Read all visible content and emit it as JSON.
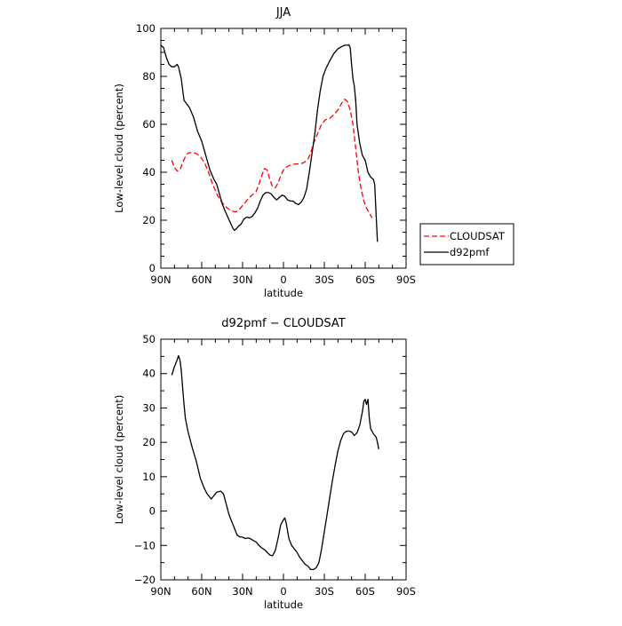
{
  "chart_data": [
    {
      "type": "line",
      "title": "JJA",
      "xlabel": "latitude",
      "ylabel": "Low-level cloud (percent)",
      "xlim": [
        90,
        -90
      ],
      "ylim": [
        0,
        100
      ],
      "xticks": [
        90,
        60,
        30,
        0,
        -30,
        -60,
        -90
      ],
      "xticklabels": [
        "90N",
        "60N",
        "30N",
        "0",
        "30S",
        "60S",
        "90S"
      ],
      "yticks": [
        0,
        20,
        40,
        60,
        80,
        100
      ],
      "yticklabels": [
        "0",
        "20",
        "40",
        "60",
        "80",
        "100"
      ],
      "legend": {
        "placement": "right",
        "entries": [
          "CLOUDSAT",
          "d92pmf"
        ]
      },
      "series": [
        {
          "name": "CLOUDSAT",
          "color": "#ff0000",
          "dash": true,
          "points": [
            [
              82,
              45
            ],
            [
              80,
              42
            ],
            [
              78,
              40.5
            ],
            [
              76,
              41
            ],
            [
              74,
              44
            ],
            [
              72,
              46.5
            ],
            [
              70,
              48
            ],
            [
              67,
              48.3
            ],
            [
              64,
              47.8
            ],
            [
              61,
              46.5
            ],
            [
              58,
              44
            ],
            [
              55,
              40
            ],
            [
              52,
              35
            ],
            [
              49,
              31
            ],
            [
              46,
              28
            ],
            [
              43,
              26
            ],
            [
              40,
              24.5
            ],
            [
              37,
              23.7
            ],
            [
              35,
              23.5
            ],
            [
              33,
              24.2
            ],
            [
              31,
              25.5
            ],
            [
              28,
              27.5
            ],
            [
              25,
              29.5
            ],
            [
              22,
              31
            ],
            [
              20,
              32
            ],
            [
              18,
              35
            ],
            [
              16,
              38.5
            ],
            [
              14,
              41.5
            ],
            [
              12,
              41
            ],
            [
              10,
              37
            ],
            [
              8,
              34
            ],
            [
              6,
              33.5
            ],
            [
              4,
              35.5
            ],
            [
              2,
              38.5
            ],
            [
              0,
              41
            ],
            [
              -3,
              42.5
            ],
            [
              -6,
              43.2
            ],
            [
              -9,
              43.5
            ],
            [
              -12,
              43.5
            ],
            [
              -15,
              44
            ],
            [
              -18,
              45.5
            ],
            [
              -20,
              48
            ],
            [
              -22,
              52
            ],
            [
              -25,
              56
            ],
            [
              -28,
              60
            ],
            [
              -31,
              62
            ],
            [
              -34,
              62.5
            ],
            [
              -37,
              64
            ],
            [
              -40,
              66
            ],
            [
              -43,
              69
            ],
            [
              -45,
              70.5
            ],
            [
              -47,
              69.5
            ],
            [
              -49,
              66
            ],
            [
              -51,
              60
            ],
            [
              -53,
              50
            ],
            [
              -55,
              40
            ],
            [
              -57,
              33
            ],
            [
              -59,
              28
            ],
            [
              -61,
              25
            ],
            [
              -63,
              23
            ],
            [
              -65,
              21
            ]
          ]
        },
        {
          "name": "d92pmf",
          "color": "#000000",
          "dash": false,
          "points": [
            [
              90,
              93
            ],
            [
              88,
              92
            ],
            [
              86,
              88
            ],
            [
              84,
              85
            ],
            [
              82,
              84
            ],
            [
              80,
              84
            ],
            [
              78,
              85
            ],
            [
              77,
              84
            ],
            [
              75,
              79
            ],
            [
              73,
              70
            ],
            [
              71,
              68.5
            ],
            [
              69,
              67
            ],
            [
              66,
              63
            ],
            [
              63,
              57
            ],
            [
              60,
              53
            ],
            [
              57,
              47
            ],
            [
              54,
              41
            ],
            [
              51,
              37
            ],
            [
              49,
              35
            ],
            [
              47,
              31
            ],
            [
              45,
              27
            ],
            [
              43,
              24
            ],
            [
              41,
              21.5
            ],
            [
              39,
              19
            ],
            [
              37,
              16.5
            ],
            [
              36,
              15.8
            ],
            [
              35,
              16.2
            ],
            [
              33,
              17.5
            ],
            [
              31,
              18.5
            ],
            [
              29,
              20.5
            ],
            [
              27,
              21.3
            ],
            [
              25,
              21
            ],
            [
              23,
              21.5
            ],
            [
              21,
              23
            ],
            [
              19,
              25
            ],
            [
              17,
              28
            ],
            [
              15,
              30.5
            ],
            [
              13,
              31.5
            ],
            [
              11,
              31.5
            ],
            [
              9,
              31
            ],
            [
              7,
              29.5
            ],
            [
              5,
              28.5
            ],
            [
              3,
              29.5
            ],
            [
              1,
              30.5
            ],
            [
              -1,
              30
            ],
            [
              -3,
              28.5
            ],
            [
              -5,
              28
            ],
            [
              -7,
              28
            ],
            [
              -9,
              27
            ],
            [
              -11,
              26.5
            ],
            [
              -13,
              27.5
            ],
            [
              -15,
              29.5
            ],
            [
              -17,
              33
            ],
            [
              -19,
              40
            ],
            [
              -21,
              48
            ],
            [
              -23,
              56
            ],
            [
              -25,
              66
            ],
            [
              -27,
              74
            ],
            [
              -29,
              80
            ],
            [
              -31,
              83
            ],
            [
              -34,
              86.5
            ],
            [
              -37,
              89.5
            ],
            [
              -40,
              91.5
            ],
            [
              -43,
              92.5
            ],
            [
              -45,
              93
            ],
            [
              -47,
              93
            ],
            [
              -48,
              93.2
            ],
            [
              -49,
              92
            ],
            [
              -50,
              85
            ],
            [
              -51,
              79
            ],
            [
              -52,
              76
            ],
            [
              -53,
              70
            ],
            [
              -54,
              60
            ],
            [
              -56,
              52
            ],
            [
              -58,
              47
            ],
            [
              -60,
              45
            ],
            [
              -62,
              40
            ],
            [
              -64,
              38
            ],
            [
              -66,
              37
            ],
            [
              -67,
              35
            ],
            [
              -68,
              22
            ],
            [
              -69,
              11
            ]
          ]
        }
      ]
    },
    {
      "type": "line",
      "title": "d92pmf − CLOUDSAT",
      "xlabel": "latitude",
      "ylabel": "Low-level cloud (percent)",
      "xlim": [
        90,
        -90
      ],
      "ylim": [
        -20,
        50
      ],
      "xticks": [
        90,
        60,
        30,
        0,
        -30,
        -60,
        -90
      ],
      "xticklabels": [
        "90N",
        "60N",
        "30N",
        "0",
        "30S",
        "60S",
        "90S"
      ],
      "yticks": [
        -20,
        -10,
        0,
        10,
        20,
        30,
        40,
        50
      ],
      "yticklabels": [
        "−20",
        "−10",
        "0",
        "10",
        "20",
        "30",
        "40",
        "50"
      ],
      "series": [
        {
          "color": "#000000",
          "dash": false,
          "points": [
            [
              82,
              39.5
            ],
            [
              80,
              42
            ],
            [
              78,
              44
            ],
            [
              77,
              45.2
            ],
            [
              76,
              44
            ],
            [
              75,
              41
            ],
            [
              74,
              36
            ],
            [
              73,
              31
            ],
            [
              72,
              27
            ],
            [
              70,
              23
            ],
            [
              67,
              18.5
            ],
            [
              64,
              14.5
            ],
            [
              61,
              9.5
            ],
            [
              58,
              6.5
            ],
            [
              56,
              5
            ],
            [
              54,
              4
            ],
            [
              53,
              3.5
            ],
            [
              51,
              4.5
            ],
            [
              49,
              5.5
            ],
            [
              46,
              5.8
            ],
            [
              44,
              5
            ],
            [
              42,
              2
            ],
            [
              40,
              -1
            ],
            [
              38,
              -3
            ],
            [
              36,
              -5
            ],
            [
              34,
              -7
            ],
            [
              32,
              -7.5
            ],
            [
              30,
              -7.6
            ],
            [
              28,
              -8
            ],
            [
              26,
              -7.8
            ],
            [
              24,
              -8.1
            ],
            [
              22,
              -8.6
            ],
            [
              20,
              -9
            ],
            [
              18,
              -10
            ],
            [
              16,
              -10.7
            ],
            [
              14,
              -11.2
            ],
            [
              12,
              -12
            ],
            [
              10,
              -12.8
            ],
            [
              8,
              -13
            ],
            [
              6,
              -11.5
            ],
            [
              4,
              -8
            ],
            [
              2,
              -4
            ],
            [
              0,
              -2.5
            ],
            [
              -1,
              -2
            ],
            [
              -2,
              -3.5
            ],
            [
              -4,
              -8
            ],
            [
              -6,
              -10
            ],
            [
              -8,
              -11
            ],
            [
              -10,
              -12
            ],
            [
              -12,
              -13.5
            ],
            [
              -14,
              -14.5
            ],
            [
              -16,
              -15.5
            ],
            [
              -18,
              -16
            ],
            [
              -19,
              -16.5
            ],
            [
              -20,
              -17
            ],
            [
              -22,
              -17
            ],
            [
              -24,
              -16.5
            ],
            [
              -26,
              -15
            ],
            [
              -28,
              -11
            ],
            [
              -30,
              -6
            ],
            [
              -32,
              -1
            ],
            [
              -34,
              4
            ],
            [
              -36,
              9
            ],
            [
              -38,
              13.5
            ],
            [
              -40,
              17.5
            ],
            [
              -42,
              20.5
            ],
            [
              -44,
              22.5
            ],
            [
              -46,
              23.2
            ],
            [
              -48,
              23.3
            ],
            [
              -50,
              23
            ],
            [
              -52,
              22
            ],
            [
              -54,
              22.8
            ],
            [
              -56,
              25
            ],
            [
              -58,
              29
            ],
            [
              -59,
              32
            ],
            [
              -60,
              32.5
            ],
            [
              -61,
              31
            ],
            [
              -62,
              32.5
            ],
            [
              -63,
              27
            ],
            [
              -64,
              24
            ],
            [
              -66,
              22.5
            ],
            [
              -67,
              22
            ],
            [
              -68,
              21.5
            ],
            [
              -69,
              20
            ],
            [
              -70,
              18
            ]
          ]
        }
      ]
    }
  ]
}
